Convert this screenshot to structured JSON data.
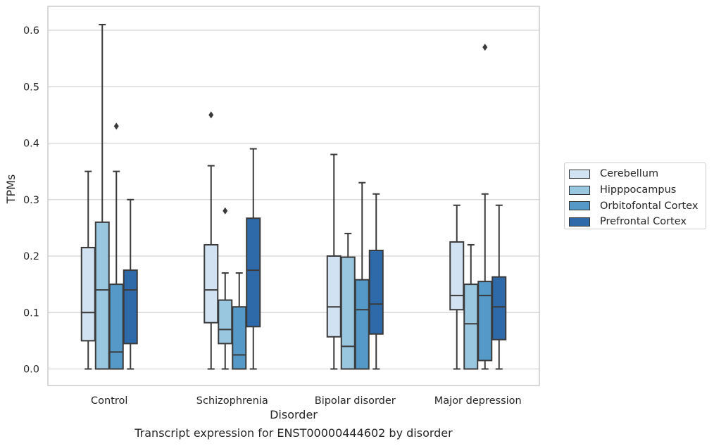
{
  "caption": "Transcript expression for ENST00000444602 by disorder",
  "chart_data": {
    "type": "boxplot",
    "title": "",
    "xlabel": "Disorder",
    "ylabel": "TPMs",
    "ylim": [
      -0.03,
      0.64
    ],
    "yticks": [
      0.0,
      0.1,
      0.2,
      0.3,
      0.4,
      0.5,
      0.6
    ],
    "ytick_labels": [
      "0.0",
      "0.1",
      "0.2",
      "0.3",
      "0.4",
      "0.5",
      "0.6"
    ],
    "grid": true,
    "legend_position": "right, outside plot area",
    "categories": [
      "Control",
      "Schizophrenia",
      "Bipolar disorder",
      "Major depression"
    ],
    "series": [
      {
        "name": "Cerebellum",
        "color": "#d1e2f2",
        "boxes": [
          {
            "whisker_low": 0.0,
            "q1": 0.05,
            "median": 0.1,
            "q3": 0.215,
            "whisker_high": 0.35,
            "outliers": []
          },
          {
            "whisker_low": 0.0,
            "q1": 0.082,
            "median": 0.14,
            "q3": 0.22,
            "whisker_high": 0.36,
            "outliers": [
              0.45
            ]
          },
          {
            "whisker_low": 0.0,
            "q1": 0.057,
            "median": 0.11,
            "q3": 0.2,
            "whisker_high": 0.38,
            "outliers": []
          },
          {
            "whisker_low": 0.0,
            "q1": 0.105,
            "median": 0.13,
            "q3": 0.225,
            "whisker_high": 0.29,
            "outliers": []
          }
        ]
      },
      {
        "name": "Hipppocampus",
        "color": "#9ac7e0",
        "boxes": [
          {
            "whisker_low": 0.0,
            "q1": 0.0,
            "median": 0.14,
            "q3": 0.26,
            "whisker_high": 0.61,
            "outliers": []
          },
          {
            "whisker_low": 0.0,
            "q1": 0.045,
            "median": 0.07,
            "q3": 0.122,
            "whisker_high": 0.17,
            "outliers": [
              0.28
            ]
          },
          {
            "whisker_low": 0.0,
            "q1": 0.0,
            "median": 0.04,
            "q3": 0.198,
            "whisker_high": 0.24,
            "outliers": []
          },
          {
            "whisker_low": 0.0,
            "q1": 0.0,
            "median": 0.08,
            "q3": 0.15,
            "whisker_high": 0.22,
            "outliers": []
          }
        ]
      },
      {
        "name": "Orbitofontal Cortex",
        "color": "#5499c8",
        "boxes": [
          {
            "whisker_low": 0.0,
            "q1": 0.0,
            "median": 0.03,
            "q3": 0.15,
            "whisker_high": 0.35,
            "outliers": [
              0.43
            ]
          },
          {
            "whisker_low": 0.0,
            "q1": 0.0,
            "median": 0.025,
            "q3": 0.11,
            "whisker_high": 0.17,
            "outliers": []
          },
          {
            "whisker_low": 0.0,
            "q1": 0.0,
            "median": 0.105,
            "q3": 0.158,
            "whisker_high": 0.33,
            "outliers": []
          },
          {
            "whisker_low": 0.0,
            "q1": 0.015,
            "median": 0.13,
            "q3": 0.155,
            "whisker_high": 0.31,
            "outliers": [
              0.57
            ]
          }
        ]
      },
      {
        "name": "Prefrontal Cortex",
        "color": "#2e6aa9",
        "boxes": [
          {
            "whisker_low": 0.0,
            "q1": 0.045,
            "median": 0.14,
            "q3": 0.175,
            "whisker_high": 0.3,
            "outliers": []
          },
          {
            "whisker_low": 0.0,
            "q1": 0.075,
            "median": 0.175,
            "q3": 0.267,
            "whisker_high": 0.39,
            "outliers": []
          },
          {
            "whisker_low": 0.0,
            "q1": 0.062,
            "median": 0.115,
            "q3": 0.21,
            "whisker_high": 0.31,
            "outliers": []
          },
          {
            "whisker_low": 0.0,
            "q1": 0.052,
            "median": 0.11,
            "q3": 0.163,
            "whisker_high": 0.29,
            "outliers": []
          }
        ]
      }
    ]
  }
}
